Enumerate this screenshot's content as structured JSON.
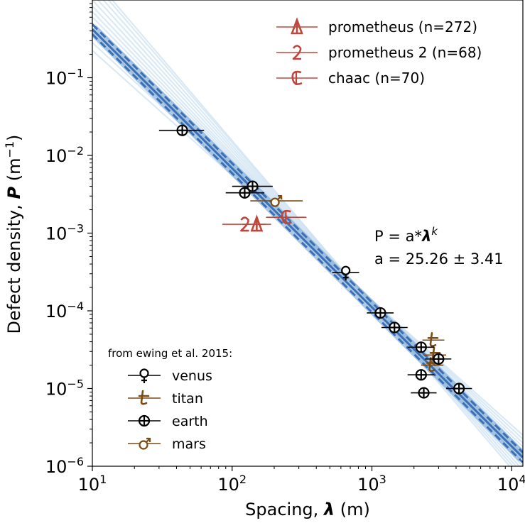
{
  "chart_data": {
    "type": "scatter",
    "scale": "log-log",
    "xlabel_prefix": "Spacing, ",
    "xlabel_symbol": "λ",
    "xlabel_suffix": " (m)",
    "ylabel_prefix": "Defect density, ",
    "ylabel_symbol": "P",
    "ylabel_suffix": " (m",
    "ylabel_exp": "−1",
    "ylabel_close": ")",
    "xlim_log10": [
      1,
      4.08
    ],
    "ylim_log10": [
      -6,
      0.0
    ],
    "x_ticks": [
      {
        "log": 1,
        "base": "10",
        "exp": "1"
      },
      {
        "log": 2,
        "base": "10",
        "exp": "2"
      },
      {
        "log": 3,
        "base": "10",
        "exp": "3"
      },
      {
        "log": 4,
        "base": "10",
        "exp": "4"
      }
    ],
    "y_ticks": [
      {
        "log": -6,
        "base": "10",
        "exp": "−6"
      },
      {
        "log": -5,
        "base": "10",
        "exp": "−5"
      },
      {
        "log": -4,
        "base": "10",
        "exp": "−4"
      },
      {
        "log": -3,
        "base": "10",
        "exp": "−3"
      },
      {
        "log": -2,
        "base": "10",
        "exp": "−2"
      },
      {
        "log": -1,
        "base": "10",
        "exp": "−1"
      }
    ],
    "fit": {
      "equation_prefix": "P = a*",
      "equation_lambda": "λ",
      "equation_exp": "k",
      "a_text": "a = 25.26 ± 3.41",
      "line_start": [
        10,
        0.42
      ],
      "line_end": [
        12000,
        1.3e-06
      ],
      "ensemble_start_log10_y": [
        -0.65,
        -0.55,
        -0.45,
        -0.38,
        -0.3,
        -0.22,
        -0.15,
        -0.08,
        0.0,
        0.08,
        0.16,
        0.24,
        0.3
      ],
      "ensemble_end_log10_y": [
        -5.6,
        -5.65,
        -5.7,
        -5.75,
        -5.8,
        -5.85,
        -5.9,
        -5.95,
        -6.0,
        -6.05,
        -6.1,
        -6.15,
        -6.2
      ],
      "colors": {
        "line": "#3b6fb6",
        "band": "#6b9ecf",
        "ensemble": "#cfe2f2"
      }
    },
    "series": [
      {
        "name": "venus",
        "color": "#000000",
        "marker": "venus",
        "points": [
          {
            "x": 650,
            "y": 0.00031,
            "xerr": [
              520,
              810
            ]
          }
        ]
      },
      {
        "name": "titan",
        "color": "#7a4b12",
        "marker": "titan",
        "points": [
          {
            "x": 2750,
            "y": 4.2e-05,
            "xerr": [
              2300,
              3300
            ]
          },
          {
            "x": 2850,
            "y": 2.7e-05,
            "xerr": [
              2350,
              3400
            ]
          },
          {
            "x": 2700,
            "y": 2e-05,
            "xerr": [
              2250,
              3250
            ]
          }
        ]
      },
      {
        "name": "earth",
        "color": "#000000",
        "marker": "earth",
        "points": [
          {
            "x": 44,
            "y": 0.021,
            "xerr": [
              30,
              63
            ]
          },
          {
            "x": 140,
            "y": 0.004,
            "xerr": [
              100,
              195
            ]
          },
          {
            "x": 123,
            "y": 0.0033,
            "xerr": [
              90,
              170
            ]
          },
          {
            "x": 1150,
            "y": 9.4e-05,
            "xerr": [
              920,
              1430
            ]
          },
          {
            "x": 1450,
            "y": 6.1e-05,
            "xerr": [
              1170,
              1800
            ]
          },
          {
            "x": 2250,
            "y": 3.4e-05,
            "xerr": [
              1800,
              2800
            ]
          },
          {
            "x": 3000,
            "y": 2.4e-05,
            "xerr": [
              2400,
              3700
            ]
          },
          {
            "x": 2250,
            "y": 1.5e-05,
            "xerr": [
              1800,
              2800
            ]
          },
          {
            "x": 2350,
            "y": 8.8e-06,
            "xerr": [
              1900,
              2900
            ]
          },
          {
            "x": 4200,
            "y": 1e-05,
            "xerr": [
              3400,
              5200
            ]
          }
        ]
      },
      {
        "name": "mars",
        "color": "#7a4b12",
        "marker": "mars",
        "points": [
          {
            "x": 205,
            "y": 0.0026,
            "xerr": [
              135,
              320
            ]
          }
        ]
      },
      {
        "name": "prometheus",
        "color": "#c0463c",
        "marker": "prometheus",
        "label": "prometheus (n=272)",
        "points": [
          {
            "x": 150,
            "y": 0.0013,
            "xerr": [
              118,
              190
            ]
          }
        ]
      },
      {
        "name": "prometheus 2",
        "color": "#c0463c",
        "marker": "prometheus2",
        "label": "prometheus 2 (n=68)",
        "points": [
          {
            "x": 123,
            "y": 0.0013,
            "xerr": [
              85,
              175
            ]
          }
        ]
      },
      {
        "name": "chaac",
        "color": "#c0463c",
        "marker": "chaac",
        "label": "chaac (n=70)",
        "points": [
          {
            "x": 245,
            "y": 0.0016,
            "xerr": [
              175,
              340
            ]
          }
        ]
      }
    ],
    "legend_top": {
      "placement": "top-right",
      "items": [
        {
          "label": "prometheus (n=272)",
          "marker": "prometheus",
          "color": "#c0463c"
        },
        {
          "label": "prometheus 2 (n=68)",
          "marker": "prometheus2",
          "color": "#c0463c"
        },
        {
          "label": "chaac (n=70)",
          "marker": "chaac",
          "color": "#c0463c"
        }
      ]
    },
    "legend_bottom": {
      "placement": "bottom-left",
      "title": "from ewing et al. 2015:",
      "items": [
        {
          "label": "venus",
          "marker": "venus",
          "color": "#000000"
        },
        {
          "label": "titan",
          "marker": "titan",
          "color": "#7a4b12"
        },
        {
          "label": "earth",
          "marker": "earth",
          "color": "#000000"
        },
        {
          "label": "mars",
          "marker": "mars",
          "color": "#7a4b12"
        }
      ]
    }
  }
}
